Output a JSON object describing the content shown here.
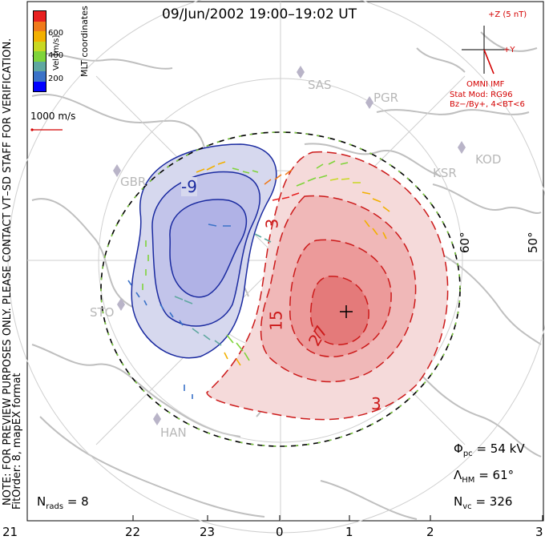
{
  "title": "09/Jun/2002 19:00–19:02 UT",
  "colorbar": {
    "label": "Vel [m/s]",
    "ticks": [
      "600",
      "400",
      "200"
    ],
    "colors": [
      "#0000ff",
      "#3a72c8",
      "#5fa8a0",
      "#7fd43a",
      "#c8d822",
      "#f2b000",
      "#f07a1a",
      "#e82020"
    ]
  },
  "coords_label": "MLT coordinates",
  "scale_vector_label": "1000 m/s",
  "imf": {
    "z_label": "+Z (5 nT)",
    "y_label": "+Y",
    "source": "OMNI IMF",
    "model": "Stat Mod: RG96",
    "bin": "Bz−/By+, 4<BT<6"
  },
  "watermark": "NOTE: FOR PREVIEW PURPOSES ONLY. PLEASE CONTACT VT–SD STAFF FOR VERIFICATION.",
  "fit_note": "FitOrder: 8, mapEX format",
  "stations": [
    "SAS",
    "PGR",
    "KSR",
    "KOD",
    "GBR",
    "STO",
    "HAN"
  ],
  "lat_labels": [
    "60°",
    "50°"
  ],
  "contour_labels": [
    "-9",
    "3",
    "15",
    "27",
    "3"
  ],
  "stats": {
    "phi_pc": "= 54 kV",
    "lambda_hm": "= 61°",
    "n_vc": "= 326",
    "n_rads": "= 8"
  },
  "mlt_ticks": [
    "21",
    "22",
    "23",
    "0",
    "1",
    "2",
    "3"
  ],
  "colors": {
    "positive": "#cc1a1a",
    "negative": "#1a2aa0",
    "frame": "#000000",
    "map": "#c0c0c0"
  }
}
